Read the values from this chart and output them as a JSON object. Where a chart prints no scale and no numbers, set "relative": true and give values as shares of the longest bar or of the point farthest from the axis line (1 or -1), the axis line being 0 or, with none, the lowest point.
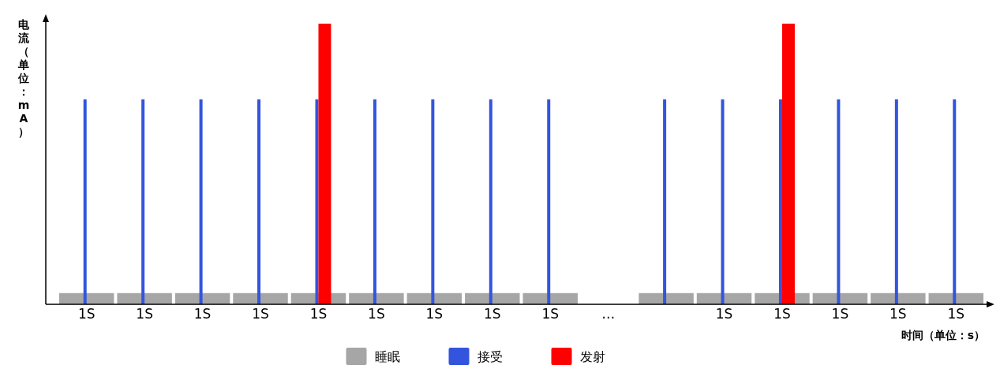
{
  "chart_data": {
    "type": "bar",
    "relative": true,
    "xlabel": "时间（单位：s）",
    "ylabel": "电流（单位：mA）",
    "legend": "bottom",
    "categories": [
      "1S",
      "1S",
      "1S",
      "1S",
      "1S",
      "1S",
      "1S",
      "1S",
      "1S",
      "…",
      null,
      "1S",
      "1S",
      "1S",
      "1S",
      "1S"
    ],
    "series": [
      {
        "name": "睡眠",
        "color": "#a6a6a6",
        "values": [
          0.04,
          0.04,
          0.04,
          0.04,
          0.04,
          0.04,
          0.04,
          0.04,
          0.04,
          null,
          0.04,
          0.04,
          0.04,
          0.04,
          0.04,
          0.04
        ]
      },
      {
        "name": "接受",
        "color": "#3355dd",
        "values": [
          0.73,
          0.73,
          0.73,
          0.73,
          0.73,
          0.73,
          0.73,
          0.73,
          0.73,
          null,
          0.73,
          0.73,
          0.73,
          0.73,
          0.73,
          0.73
        ]
      },
      {
        "name": "发射",
        "color": "#ff0000",
        "values": [
          null,
          null,
          null,
          null,
          1,
          null,
          null,
          null,
          null,
          null,
          null,
          null,
          1,
          null,
          null,
          null
        ]
      }
    ]
  }
}
